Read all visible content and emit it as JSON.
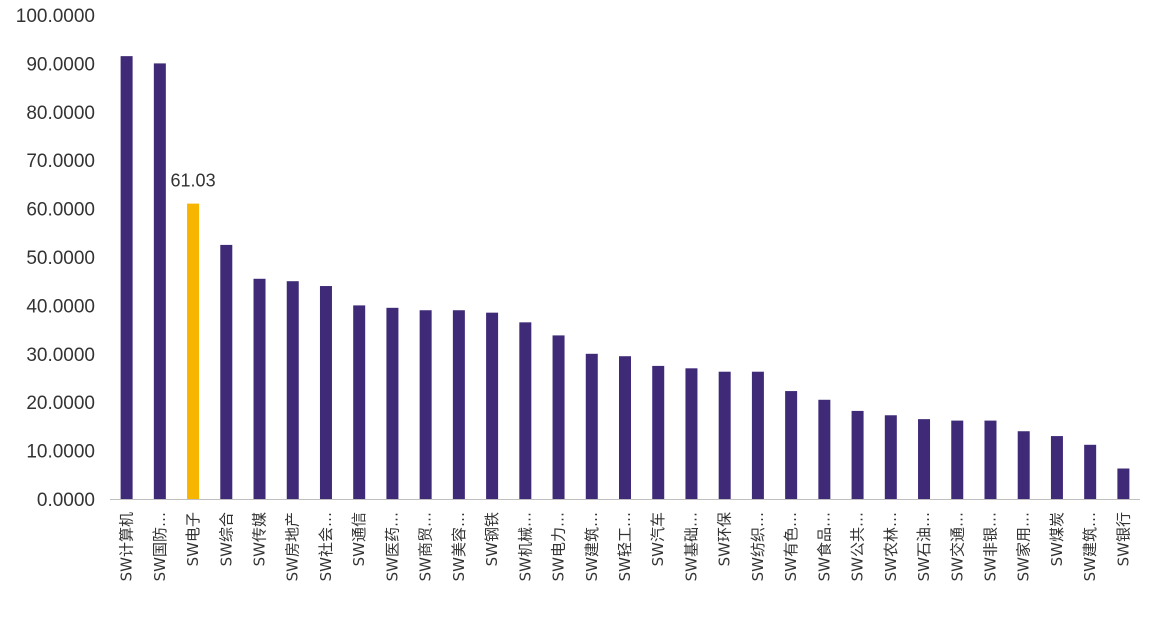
{
  "chart_data": {
    "type": "bar",
    "title": "",
    "xlabel": "",
    "ylabel": "",
    "ylim": [
      0,
      100
    ],
    "y_ticks": [
      "0.0000",
      "10.0000",
      "20.0000",
      "30.0000",
      "40.0000",
      "50.0000",
      "60.0000",
      "70.0000",
      "80.0000",
      "90.0000",
      "100.0000"
    ],
    "categories": [
      "SW计算机",
      "SW国防…",
      "SW电子",
      "SW综合",
      "SW传媒",
      "SW房地产",
      "SW社会…",
      "SW通信",
      "SW医药…",
      "SW商贸…",
      "SW美容…",
      "SW钢铁",
      "SW机械…",
      "SW电力…",
      "SW建筑…",
      "SW轻工…",
      "SW汽车",
      "SW基础…",
      "SW环保",
      "SW纺织…",
      "SW有色…",
      "SW食品…",
      "SW公共…",
      "SW农林…",
      "SW石油…",
      "SW交通…",
      "SW非银…",
      "SW家用…",
      "SW煤炭",
      "SW建筑…",
      "SW银行"
    ],
    "values": [
      91.5,
      90.0,
      61.03,
      52.5,
      45.5,
      45.0,
      44.0,
      40.0,
      39.5,
      39.0,
      39.0,
      38.5,
      36.5,
      33.8,
      30.0,
      29.5,
      27.5,
      27.0,
      26.3,
      26.3,
      22.3,
      20.5,
      18.2,
      17.3,
      16.5,
      16.2,
      16.2,
      14.0,
      13.0,
      11.2,
      6.3
    ],
    "highlight_index": 2,
    "data_labels": [
      {
        "index": 2,
        "text": "61.03"
      }
    ],
    "grid": false,
    "legend": "none",
    "colors": {
      "bar": "#3f2a78",
      "highlight": "#f7b500",
      "axis": "#bfbfbf",
      "text": "#333333"
    }
  }
}
